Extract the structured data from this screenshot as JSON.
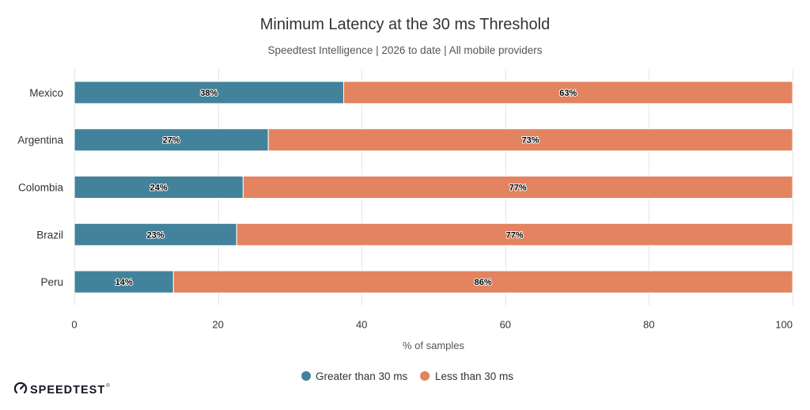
{
  "chart_data": {
    "type": "bar",
    "horizontal": true,
    "stacked": true,
    "title": "Minimum Latency at the 30 ms Threshold",
    "subtitle": "Speedtest Intelligence | 2026 to date | All mobile providers",
    "categories": [
      "Mexico",
      "Argentina",
      "Colombia",
      "Brazil",
      "Peru"
    ],
    "series": [
      {
        "name": "Greater than 30 ms",
        "color": "#42839B",
        "values": [
          37.5,
          27.0,
          23.5,
          22.6,
          13.8
        ],
        "labels": [
          "38%",
          "27%",
          "24%",
          "23%",
          "14%"
        ]
      },
      {
        "name": "Less than 30 ms",
        "color": "#E3835F",
        "values": [
          62.5,
          73.0,
          76.5,
          77.4,
          86.2
        ],
        "labels": [
          "63%",
          "73%",
          "77%",
          "77%",
          "86%"
        ]
      }
    ],
    "xlabel": "% of samples",
    "xlim": [
      0,
      100
    ],
    "xticks": [
      0,
      20,
      40,
      60,
      80,
      100
    ],
    "grid": true,
    "legend": "bottom-center"
  },
  "logo": {
    "text": "SPEEDTEST",
    "mark": "®",
    "icon": "speedometer-icon"
  }
}
